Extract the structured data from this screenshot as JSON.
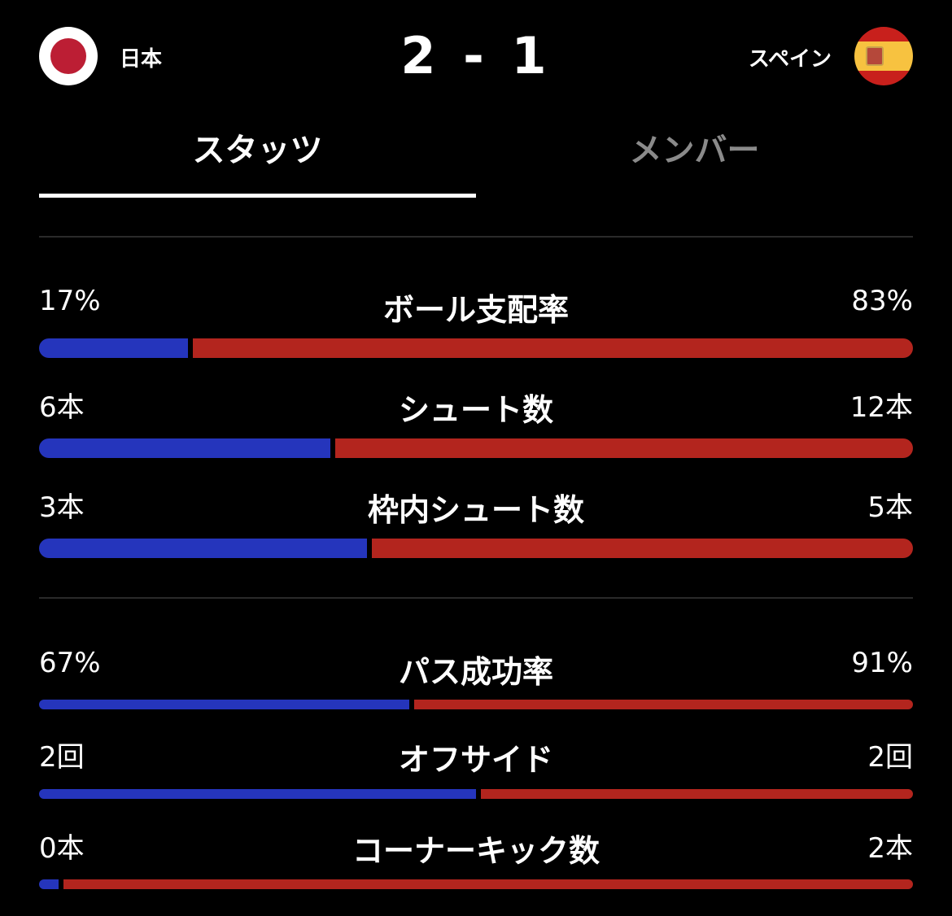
{
  "header": {
    "home_team": "日本",
    "away_team": "スペイン",
    "score": "2 - 1",
    "home_flag": "japan-flag",
    "away_flag": "spain-flag"
  },
  "tabs": [
    {
      "label": "スタッツ",
      "active": true
    },
    {
      "label": "メンバー",
      "active": false
    }
  ],
  "colors": {
    "home": "#2535bc",
    "away": "#b3251e"
  },
  "stats": [
    {
      "label": "ボール支配率",
      "home": "17%",
      "away": "83%",
      "home_value": 17,
      "away_value": 83
    },
    {
      "label": "シュート数",
      "home": "6本",
      "away": "12本",
      "home_value": 6,
      "away_value": 12
    },
    {
      "label": "枠内シュート数",
      "home": "3本",
      "away": "5本",
      "home_value": 3,
      "away_value": 5
    },
    {
      "label": "パス成功率",
      "home": "67%",
      "away": "91%",
      "home_value": 67,
      "away_value": 91
    },
    {
      "label": "オフサイド",
      "home": "2回",
      "away": "2回",
      "home_value": 2,
      "away_value": 2
    },
    {
      "label": "コーナーキック数",
      "home": "0本",
      "away": "2本",
      "home_value": 0,
      "away_value": 2
    }
  ]
}
